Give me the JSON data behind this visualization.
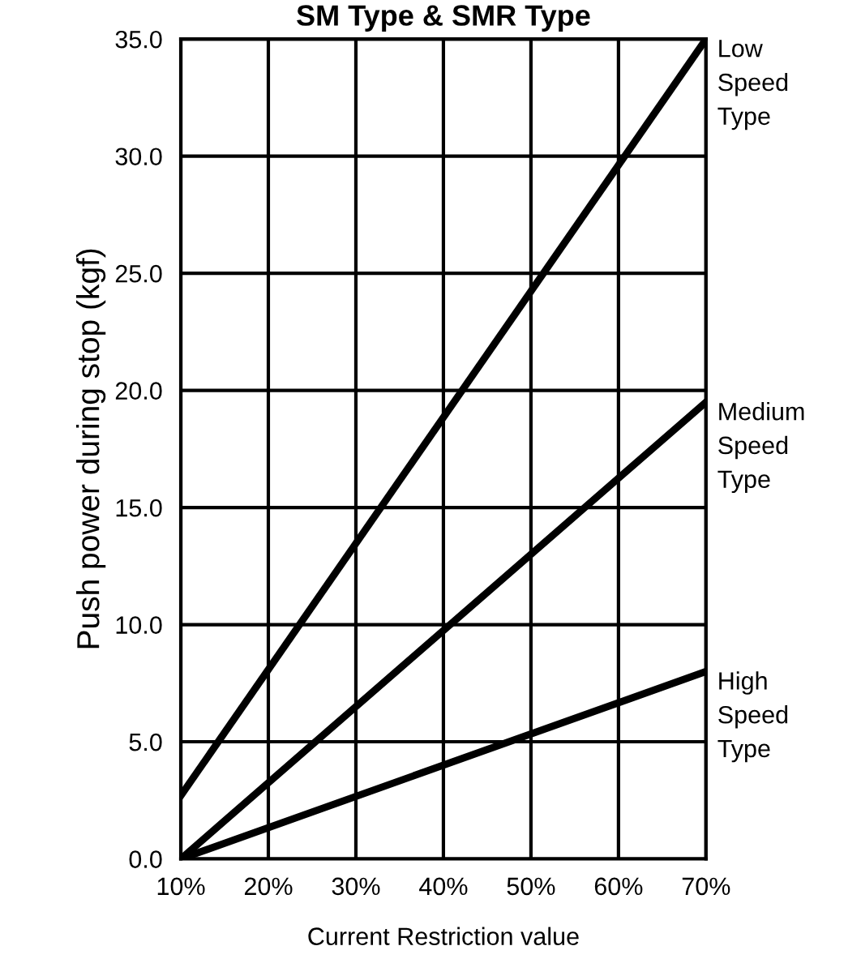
{
  "chart_data": {
    "type": "line",
    "title": "SM Type & SMR Type",
    "xlabel": "Current Restriction value",
    "ylabel": "Push power during stop (kgf)",
    "x": [
      10,
      70
    ],
    "series": [
      {
        "name": "Low Speed Type",
        "color": "#000000",
        "values": [
          2.7,
          35
        ]
      },
      {
        "name": "Medium Speed Type",
        "color": "#000000",
        "values": [
          0,
          19.5
        ]
      },
      {
        "name": "High Speed Type",
        "color": "#000000",
        "values": [
          0,
          8
        ]
      }
    ],
    "xlim": [
      10,
      70
    ],
    "ylim": [
      0,
      35
    ],
    "xticks": [
      {
        "value": 10,
        "label": "10%"
      },
      {
        "value": 20,
        "label": "20%"
      },
      {
        "value": 30,
        "label": "30%"
      },
      {
        "value": 40,
        "label": "40%"
      },
      {
        "value": 50,
        "label": "50%"
      },
      {
        "value": 60,
        "label": "60%"
      },
      {
        "value": 70,
        "label": "70%"
      }
    ],
    "yticks": [
      {
        "value": 0,
        "label": "0.0"
      },
      {
        "value": 5,
        "label": "5.0"
      },
      {
        "value": 10,
        "label": "10.0"
      },
      {
        "value": 15,
        "label": "15.0"
      },
      {
        "value": 20,
        "label": "20.0"
      },
      {
        "value": 25,
        "label": "25.0"
      },
      {
        "value": 30,
        "label": "30.0"
      },
      {
        "value": 35,
        "label": "35.0"
      }
    ],
    "grid": true,
    "marker": "none",
    "line_style": "solid"
  }
}
